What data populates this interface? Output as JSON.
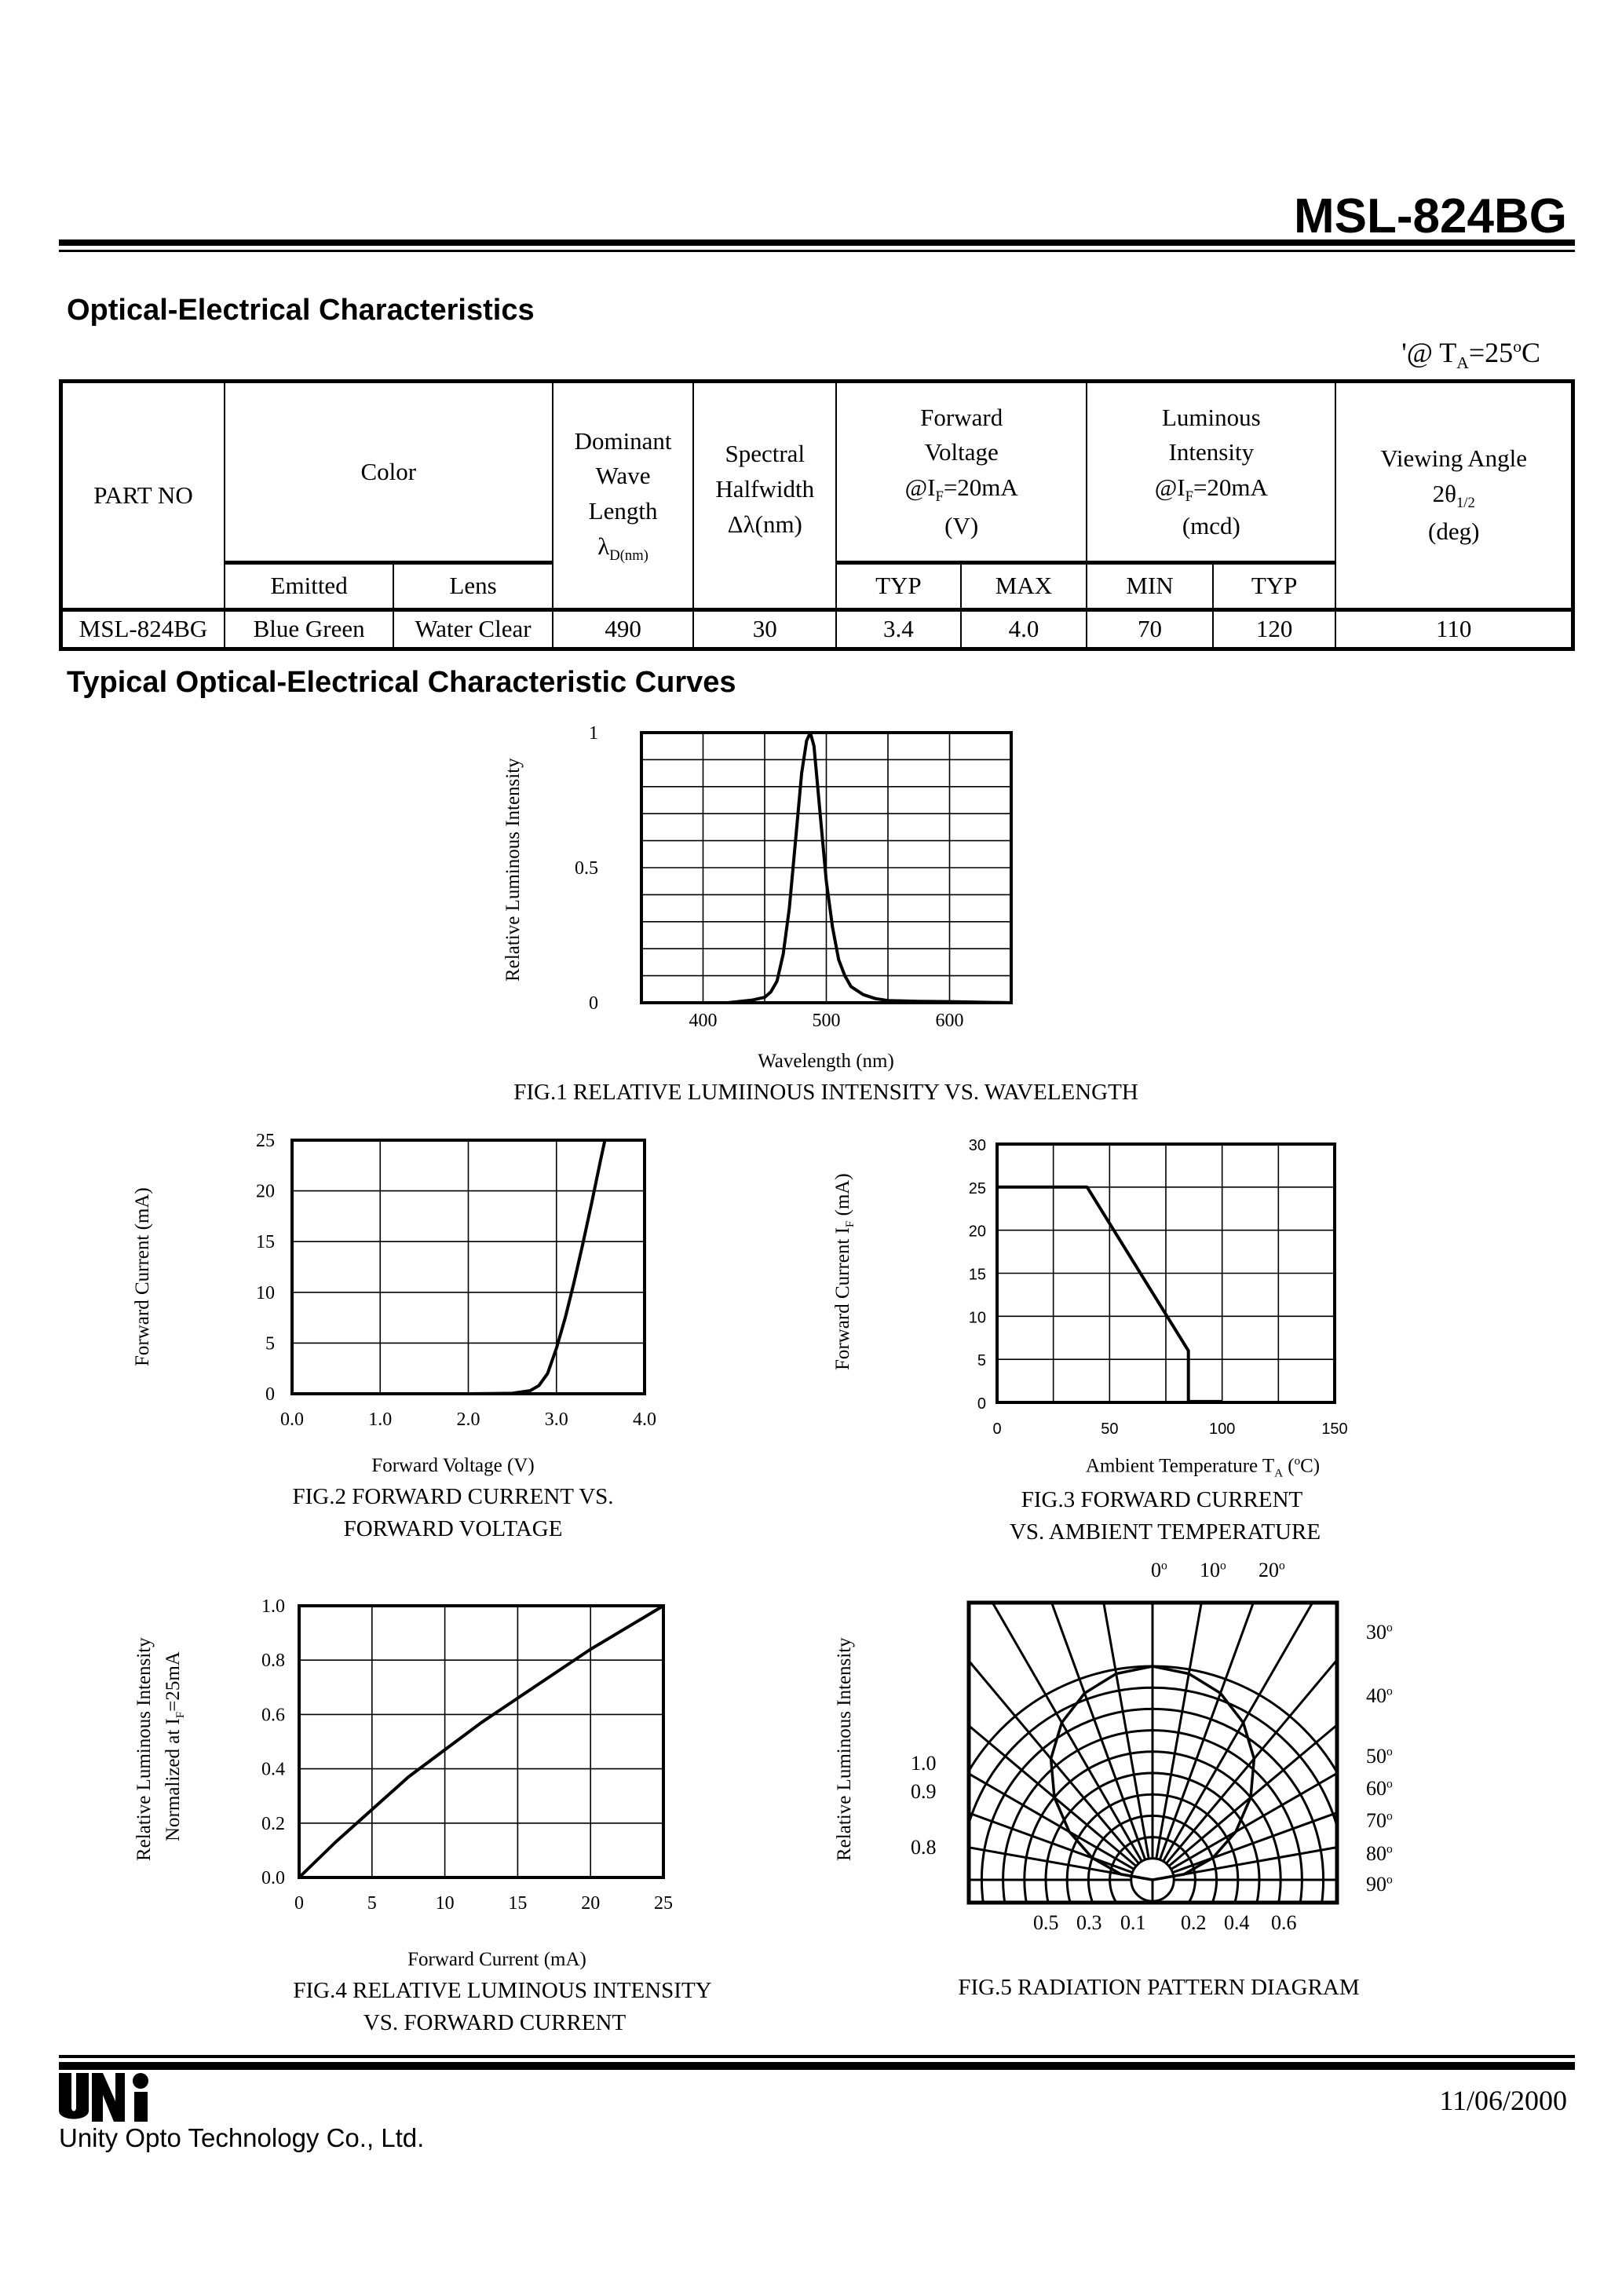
{
  "header": {
    "part_title": "MSL-824BG"
  },
  "section1": {
    "title": "Optical-Electrical Characteristics",
    "condition_prefix": "'@ T",
    "condition_sub": "A",
    "condition_mid": "=25",
    "condition_sup": "o",
    "condition_suffix": "C"
  },
  "table": {
    "part_no": "PART NO",
    "color": "Color",
    "emitted": "Emitted",
    "lens": "Lens",
    "dominant": [
      "Dominant",
      "Wave",
      "Length"
    ],
    "dominant_symbol": "λ",
    "dominant_sub": "D(nm)",
    "spectral": [
      "Spectral",
      "Halfwidth"
    ],
    "spectral_symbol": "Δλ(nm)",
    "forward": [
      "Forward",
      "Voltage"
    ],
    "at": "@I",
    "at_sub": "F",
    "at_val": "=20mA",
    "forward_unit": "(V)",
    "luminous": [
      "Luminous",
      "Intensity"
    ],
    "luminous_unit": "(mcd)",
    "viewing": "Viewing Angle",
    "viewing_sym": "2θ",
    "viewing_sub": "1/2",
    "viewing_unit": "(deg)",
    "typ": "TYP",
    "max": "MAX",
    "min": "MIN",
    "row": {
      "part": "MSL-824BG",
      "emitted": "Blue Green",
      "lens": "Water Clear",
      "dominant": "490",
      "halfwidth": "30",
      "vf_typ": "3.4",
      "vf_max": "4.0",
      "iv_min": "70",
      "iv_typ": "120",
      "angle": "110"
    }
  },
  "section2": {
    "title": "Typical  Optical-Electrical Characteristic Curves"
  },
  "chart_data": [
    {
      "id": "fig1",
      "type": "line",
      "caption": "FIG.1 RELATIVE LUMIINOUS INTENSITY VS. WAVELENGTH",
      "xlabel": "Wavelength (nm)",
      "ylabel": "Relative   Luminous Intensity",
      "xlim": [
        350,
        650
      ],
      "ylim": [
        0,
        1
      ],
      "grid": true,
      "xgrid_step": 50,
      "ygrid_step": 0.1,
      "xticks": [
        400,
        500,
        600
      ],
      "xtick_labels": [
        "400",
        "500",
        "600"
      ],
      "yticks": [
        0,
        0.5,
        1
      ],
      "ytick_labels": [
        "0",
        "0.5",
        "1"
      ],
      "x": [
        420,
        440,
        450,
        455,
        460,
        465,
        470,
        475,
        480,
        484,
        487,
        490,
        493,
        496,
        500,
        505,
        510,
        515,
        520,
        530,
        540,
        550,
        575,
        600,
        650
      ],
      "y": [
        0,
        0.01,
        0.02,
        0.04,
        0.08,
        0.18,
        0.35,
        0.6,
        0.85,
        0.97,
        1.0,
        0.95,
        0.8,
        0.65,
        0.45,
        0.28,
        0.16,
        0.1,
        0.06,
        0.03,
        0.015,
        0.008,
        0.005,
        0.004,
        0
      ]
    },
    {
      "id": "fig2",
      "type": "line",
      "caption": [
        "FIG.2 FORWARD CURRENT VS.",
        "FORWARD VOLTAGE"
      ],
      "xlabel": "Forward Voltage (V)",
      "ylabel": "Forward Current  (mA)",
      "xlim": [
        0,
        4
      ],
      "ylim": [
        0,
        25
      ],
      "grid": true,
      "xgrid_step": 1,
      "ygrid_step": 5,
      "xticks": [
        0,
        1,
        2,
        3,
        4
      ],
      "xtick_labels": [
        "0.0",
        "1.0",
        "2.0",
        "3.0",
        "4.0"
      ],
      "yticks": [
        0,
        5,
        10,
        15,
        20,
        25
      ],
      "ytick_labels": [
        "0",
        "5",
        "10",
        "15",
        "20",
        "25"
      ],
      "x": [
        0,
        2.0,
        2.5,
        2.7,
        2.8,
        2.9,
        3.0,
        3.1,
        3.2,
        3.3,
        3.4,
        3.5,
        3.55
      ],
      "y": [
        0,
        0,
        0.05,
        0.3,
        0.8,
        2,
        4.5,
        7.5,
        11,
        14.8,
        18.8,
        23,
        25
      ]
    },
    {
      "id": "fig3",
      "type": "line",
      "caption": [
        "FIG.3 FORWARD CURRENT",
        "VS. AMBIENT TEMPERATURE"
      ],
      "xlabel": "Ambient Temperature T",
      "xlabel_sub": "A",
      "xlabel_suffix": " (",
      "xlabel_sup": "o",
      "xlabel_end": "C)",
      "ylabel": "Forward Current I",
      "ylabel_sub": "F",
      "ylabel_end": " (mA)",
      "xlim": [
        0,
        150
      ],
      "ylim": [
        0,
        30
      ],
      "grid": true,
      "xgrid_step": 25,
      "ygrid_step": 5,
      "xticks": [
        0,
        50,
        100,
        150
      ],
      "xtick_labels": [
        "0",
        "50",
        "100",
        "150"
      ],
      "yticks": [
        0,
        5,
        10,
        15,
        20,
        25,
        30
      ],
      "ytick_labels": [
        "0",
        "5",
        "10",
        "15",
        "20",
        "25",
        "30"
      ],
      "x": [
        0,
        40,
        85,
        85,
        100
      ],
      "y": [
        25,
        25,
        6,
        0.1,
        0.1
      ]
    },
    {
      "id": "fig4",
      "type": "line",
      "caption": [
        "FIG.4 RELATIVE LUMINOUS INTENSITY",
        "VS. FORWARD CURRENT"
      ],
      "xlabel": "Forward Current (mA)",
      "ylabel": "Relative Luminous Intensity",
      "ylabel2": "Normalized at I",
      "ylabel2_sub": "F",
      "ylabel2_end": "=25mA",
      "xlim": [
        0,
        25
      ],
      "ylim": [
        0,
        1
      ],
      "grid": true,
      "xgrid_step": 5,
      "ygrid_step": 0.2,
      "xticks": [
        0,
        5,
        10,
        15,
        20,
        25
      ],
      "xtick_labels": [
        "0",
        "5",
        "10",
        "15",
        "20",
        "25"
      ],
      "yticks": [
        0,
        0.2,
        0.4,
        0.6,
        0.8,
        1.0
      ],
      "ytick_labels": [
        "0.0",
        "0.2",
        "0.4",
        "0.6",
        "0.8",
        "1.0"
      ],
      "x": [
        0,
        2.5,
        5,
        7.5,
        10,
        12.5,
        15,
        17.5,
        20,
        22.5,
        25
      ],
      "y": [
        0,
        0.13,
        0.25,
        0.37,
        0.47,
        0.57,
        0.66,
        0.75,
        0.84,
        0.92,
        1.0
      ]
    },
    {
      "id": "fig5",
      "type": "polar",
      "caption": "FIG.5 RADIATION PATTERN DIAGRAM",
      "ylabel": "Relative Luminous Intensity",
      "top_labels": [
        "0",
        "10",
        "20"
      ],
      "right_labels": [
        "30",
        "40",
        "50",
        "60",
        "70",
        "80",
        "90"
      ],
      "left_labels": [
        "1.0",
        "0.9",
        "0.8"
      ],
      "bottom_labels": [
        "0.5",
        "0.3",
        "0.1",
        "0.2",
        "0.4",
        "0.6"
      ],
      "degree_mark": "o",
      "angles": [
        0,
        10,
        20,
        30,
        40,
        50,
        60,
        70,
        80,
        90
      ],
      "intensity": [
        1.0,
        0.98,
        0.93,
        0.85,
        0.74,
        0.6,
        0.45,
        0.3,
        0.15,
        0
      ]
    }
  ],
  "footer": {
    "logo": "UNi",
    "company": "Unity Opto Technology Co., Ltd.",
    "date": "11/06/2000"
  }
}
